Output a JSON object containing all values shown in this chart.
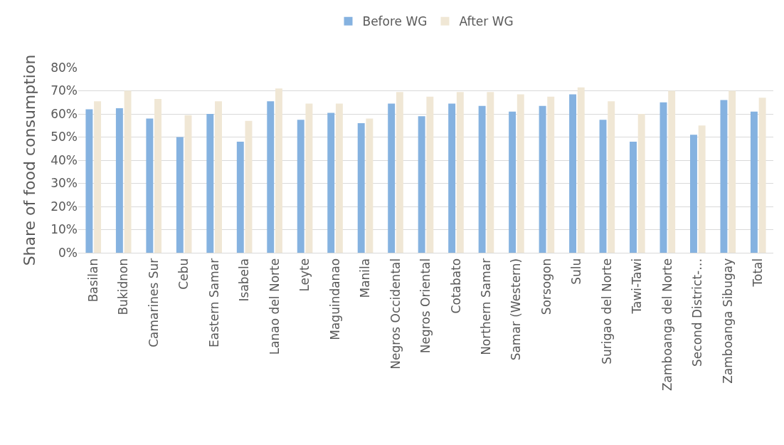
{
  "chart_data": {
    "type": "bar",
    "ylabel": "Share of food consumption",
    "categories": [
      "Basilan",
      "Bukidnon",
      "Camarines Sur",
      "Cebu",
      "Eastern Samar",
      "Isabela",
      "Lanao del Norte",
      "Leyte",
      "Maguindanao",
      "Manila",
      "Negros Occidental",
      "Negros Oriental",
      "Cotabato",
      "Northern Samar",
      "Samar (Western)",
      "Sorsogon",
      "Sulu",
      "Surigao del Norte",
      "Tawi-Tawi",
      "Zamboanga del Norte",
      "Second District-…",
      "Zamboanga Sibugay",
      "Total"
    ],
    "series": [
      {
        "name": "Before WG",
        "color": "#85b2e0",
        "values": [
          62,
          62.5,
          58,
          50,
          60,
          48,
          65.5,
          57.5,
          60.5,
          56,
          64.5,
          59,
          64.5,
          63.5,
          61,
          63.5,
          68.5,
          57.5,
          48,
          65,
          51,
          66,
          61
        ]
      },
      {
        "name": "After WG",
        "color": "#f0e7d5",
        "values": [
          65.5,
          70,
          66.5,
          59.5,
          65.5,
          57,
          71,
          64.5,
          64.5,
          58,
          69.5,
          67.5,
          69.5,
          69.5,
          68.5,
          67.5,
          71.5,
          65.5,
          60,
          70,
          55,
          70,
          67
        ]
      }
    ],
    "ylim": [
      0,
      80
    ],
    "yticks": [
      {
        "value": 0,
        "label": "0%"
      },
      {
        "value": 10,
        "label": "10%"
      },
      {
        "value": 20,
        "label": "20%"
      },
      {
        "value": 30,
        "label": "30%"
      },
      {
        "value": 40,
        "label": "40%"
      },
      {
        "value": 50,
        "label": "50%"
      },
      {
        "value": 60,
        "label": "60%"
      },
      {
        "value": 70,
        "label": "70%"
      },
      {
        "value": 80,
        "label": "80%"
      }
    ],
    "grid": "y",
    "legend": "top"
  }
}
